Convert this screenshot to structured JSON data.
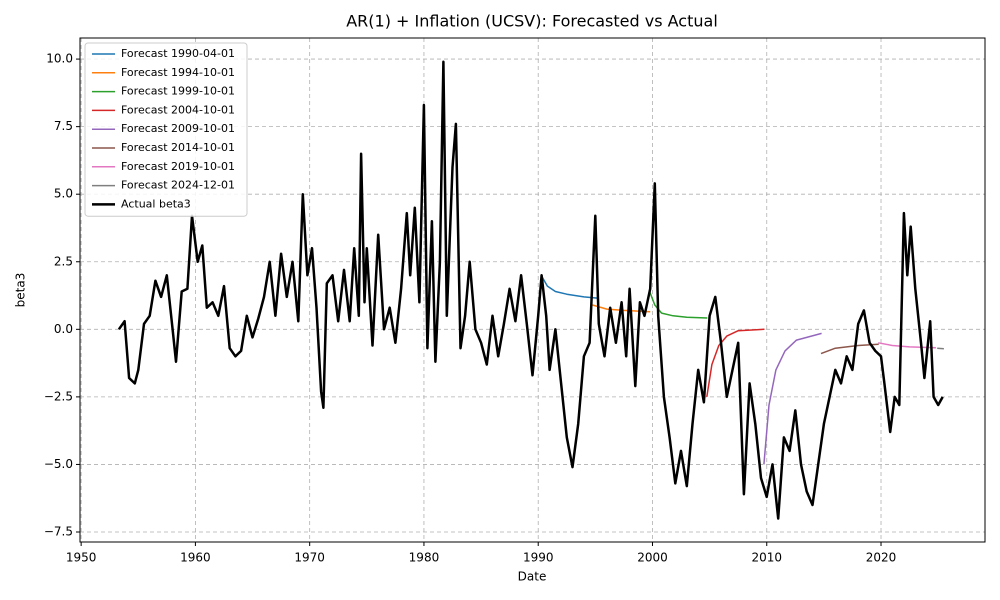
{
  "chart_data": {
    "type": "line",
    "title": "AR(1) + Inflation (UCSV): Forecasted vs Actual",
    "x_label": "Date",
    "y_label": "beta3",
    "xlim": [
      1949.9,
      2029.1
    ],
    "ylim": [
      -7.87,
      10.78
    ],
    "xticks": [
      1950,
      1960,
      1970,
      1980,
      1990,
      2000,
      2010,
      2020
    ],
    "yticks": [
      {
        "value": -7.5,
        "label": "−7.5"
      },
      {
        "value": -5,
        "label": "−5.0"
      },
      {
        "value": -2.5,
        "label": "−2.5"
      },
      {
        "value": 0,
        "label": "0.0"
      },
      2.5,
      {
        "value": 5,
        "label": "5.0"
      },
      7.5,
      {
        "value": 10,
        "label": "10.0"
      }
    ],
    "grid": true,
    "legend": "upper left",
    "series": [
      {
        "name": "Forecast 1990-04-01",
        "color": "#1f77b4",
        "width": 1.5,
        "x": [
          1990.25,
          1990.8,
          1991.5,
          1992.5,
          1994,
          1995.3
        ],
        "values": [
          2.0,
          1.6,
          1.4,
          1.3,
          1.2,
          1.15
        ]
      },
      {
        "name": "Forecast 1994-10-01",
        "color": "#ff7f0e",
        "width": 1.5,
        "x": [
          1994.75,
          1996,
          1997.5,
          1999.8
        ],
        "values": [
          0.9,
          0.75,
          0.7,
          0.65
        ]
      },
      {
        "name": "Forecast 1999-10-01",
        "color": "#2ca02c",
        "width": 1.5,
        "x": [
          1999.75,
          2000.2,
          2000.8,
          2001.8,
          2003,
          2004.8
        ],
        "values": [
          1.4,
          0.9,
          0.6,
          0.5,
          0.45,
          0.42
        ]
      },
      {
        "name": "Forecast 2004-10-01",
        "color": "#d62728",
        "width": 1.5,
        "x": [
          2004.75,
          2005.2,
          2005.8,
          2006.5,
          2007.5,
          2009.8
        ],
        "values": [
          -2.5,
          -1.3,
          -0.6,
          -0.25,
          -0.05,
          0.0
        ]
      },
      {
        "name": "Forecast 2009-10-01",
        "color": "#9467bd",
        "width": 1.5,
        "x": [
          2009.75,
          2010.2,
          2010.8,
          2011.6,
          2012.6,
          2014.8
        ],
        "values": [
          -5.0,
          -2.8,
          -1.5,
          -0.8,
          -0.4,
          -0.15
        ]
      },
      {
        "name": "Forecast 2014-10-01",
        "color": "#8c564b",
        "width": 1.5,
        "x": [
          2014.75,
          2016,
          2018,
          2019.8
        ],
        "values": [
          -0.9,
          -0.7,
          -0.6,
          -0.55
        ]
      },
      {
        "name": "Forecast 2019-10-01",
        "color": "#e377c2",
        "width": 1.5,
        "x": [
          2019.75,
          2021,
          2022.5,
          2024.8
        ],
        "values": [
          -0.5,
          -0.6,
          -0.65,
          -0.68
        ]
      },
      {
        "name": "Forecast 2024-12-01",
        "color": "#7f7f7f",
        "width": 1.5,
        "x": [
          2024.92,
          2025.5
        ],
        "values": [
          -0.7,
          -0.72
        ]
      },
      {
        "name": "Actual beta3",
        "color": "#000000",
        "width": 2.5,
        "x": [
          1953.3,
          1953.8,
          1954.2,
          1954.7,
          1955,
          1955.5,
          1956,
          1956.5,
          1957,
          1957.5,
          1958,
          1958.3,
          1958.8,
          1959.3,
          1959.7,
          1960.2,
          1960.6,
          1961,
          1961.5,
          1962,
          1962.5,
          1963,
          1963.5,
          1964,
          1964.5,
          1965,
          1965.5,
          1966,
          1966.5,
          1967,
          1967.5,
          1968,
          1968.5,
          1969,
          1969.4,
          1969.8,
          1970.2,
          1970.6,
          1971,
          1971.2,
          1971.5,
          1972,
          1972.5,
          1973,
          1973.5,
          1973.9,
          1974.3,
          1974.5,
          1974.8,
          1975,
          1975.5,
          1976,
          1976.5,
          1977,
          1977.5,
          1978,
          1978.5,
          1978.8,
          1979.2,
          1979.6,
          1980,
          1980.3,
          1980.7,
          1981,
          1981.4,
          1981.7,
          1982,
          1982.5,
          1982.8,
          1983.2,
          1983.6,
          1984,
          1984.5,
          1985,
          1985.5,
          1986,
          1986.5,
          1987,
          1987.5,
          1988,
          1988.5,
          1989,
          1989.5,
          1990,
          1990.3,
          1990.7,
          1991,
          1991.5,
          1992,
          1992.5,
          1993,
          1993.5,
          1994,
          1994.5,
          1995,
          1995.3,
          1995.8,
          1996.3,
          1996.8,
          1997.3,
          1997.7,
          1998,
          1998.5,
          1998.9,
          1999.3,
          1999.8,
          2000.2,
          2000.5,
          2001,
          2001.5,
          2002,
          2002.5,
          2003,
          2003.5,
          2004,
          2004.5,
          2005,
          2005.5,
          2006,
          2006.5,
          2007,
          2007.5,
          2008,
          2008.5,
          2009,
          2009.5,
          2010,
          2010.5,
          2011,
          2011.5,
          2012,
          2012.5,
          2013,
          2013.5,
          2014,
          2014.5,
          2015,
          2015.5,
          2016,
          2016.5,
          2017,
          2017.5,
          2018,
          2018.5,
          2019,
          2019.5,
          2020,
          2020.3,
          2020.8,
          2021.2,
          2021.6,
          2022,
          2022.3,
          2022.6,
          2023,
          2023.5,
          2023.8,
          2024.3,
          2024.6,
          2025,
          2025.4
        ],
        "values": [
          0,
          0.3,
          -1.8,
          -2.0,
          -1.5,
          0.2,
          0.5,
          1.8,
          1.2,
          2.0,
          0,
          -1.2,
          1.4,
          1.5,
          4.2,
          2.5,
          3.1,
          0.8,
          1.0,
          0.5,
          1.6,
          -0.7,
          -1.0,
          -0.8,
          0.5,
          -0.3,
          0.4,
          1.2,
          2.5,
          0.5,
          2.8,
          1.2,
          2.5,
          0.3,
          5.0,
          2.0,
          3.0,
          0.8,
          -2.3,
          -2.9,
          1.7,
          2.0,
          0.3,
          2.2,
          0.3,
          3.0,
          0.5,
          6.5,
          1.0,
          3.0,
          -0.6,
          3.5,
          0,
          0.8,
          -0.5,
          1.5,
          4.3,
          2.0,
          4.5,
          1.0,
          8.3,
          -0.7,
          4.0,
          -1.2,
          2.5,
          9.9,
          0.5,
          6.0,
          7.6,
          -0.7,
          0.5,
          2.5,
          0,
          -0.5,
          -1.3,
          0.5,
          -1.0,
          0.2,
          1.5,
          0.3,
          2.0,
          0.2,
          -1.7,
          0.5,
          2.0,
          0.5,
          -1.5,
          0,
          -2.0,
          -4.0,
          -5.1,
          -3.5,
          -1.0,
          -0.5,
          4.2,
          0.2,
          -1.0,
          0.8,
          -0.5,
          1.0,
          -1.0,
          1.5,
          -2.1,
          1.0,
          0.5,
          1.5,
          5.4,
          0.5,
          -2.5,
          -4.0,
          -5.7,
          -4.5,
          -5.8,
          -3.5,
          -1.5,
          -2.7,
          0.5,
          1.2,
          -0.5,
          -2.5,
          -1.5,
          -0.5,
          -6.1,
          -2.0,
          -3.5,
          -5.5,
          -6.2,
          -5.0,
          -7.0,
          -4.0,
          -4.5,
          -3.0,
          -5.0,
          -6.0,
          -6.5,
          -5.0,
          -3.5,
          -2.5,
          -1.5,
          -2.0,
          -1.0,
          -1.5,
          0.2,
          0.7,
          -0.5,
          -0.8,
          -1.0,
          -2.0,
          -3.8,
          -2.5,
          -2.8,
          4.3,
          2.0,
          3.8,
          1.5,
          -0.5,
          -1.8,
          0.3,
          -2.5,
          -2.8,
          -2.5
        ]
      }
    ]
  }
}
